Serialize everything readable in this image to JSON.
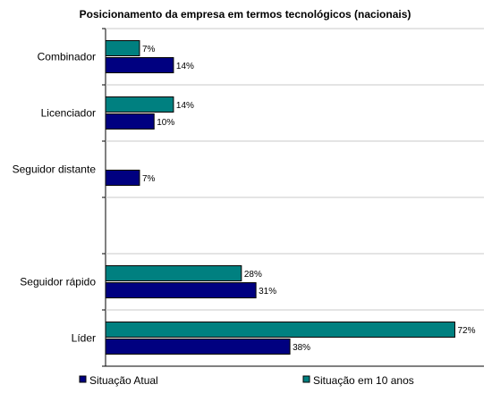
{
  "chart_data": {
    "type": "bar",
    "orientation": "horizontal",
    "title": "Posicionamento da empresa em termos tecnológicos (nacionais)",
    "categories": [
      "Combinador",
      "Licenciador",
      "Seguidor distante",
      "",
      "Seguidor rápido",
      "Líder"
    ],
    "series": [
      {
        "name": "Situação Atual",
        "color": "#000080",
        "values": [
          14,
          10,
          7,
          null,
          31,
          38
        ],
        "labels": [
          "14%",
          "10%",
          "7%",
          "",
          "31%",
          "38%"
        ]
      },
      {
        "name": "Situação em 10 anos",
        "color": "#008080",
        "values": [
          7,
          14,
          null,
          null,
          28,
          72
        ],
        "labels": [
          "7%",
          "14%",
          "",
          "",
          "28%",
          "72%"
        ]
      }
    ],
    "xlim": [
      0,
      78
    ],
    "grid": "horizontal category separators",
    "legend_position": "bottom"
  }
}
